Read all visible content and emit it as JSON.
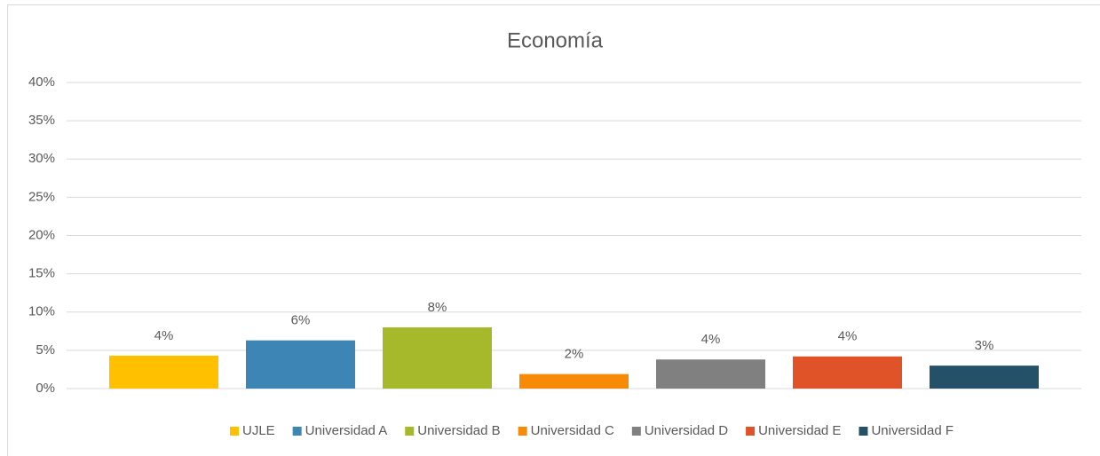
{
  "chart_data": {
    "type": "bar",
    "title": "Economía",
    "categories": [
      null
    ],
    "series": [
      {
        "name": "UJLE",
        "color": "#ffc000",
        "values": [
          4.3
        ],
        "value_labels": [
          "4%"
        ]
      },
      {
        "name": "Universidad A",
        "color": "#3d85b5",
        "values": [
          6.3
        ],
        "value_labels": [
          "6%"
        ]
      },
      {
        "name": "Universidad B",
        "color": "#a5b92a",
        "values": [
          8.0
        ],
        "value_labels": [
          "8%"
        ]
      },
      {
        "name": "Universidad C",
        "color": "#f78b07",
        "values": [
          1.9
        ],
        "value_labels": [
          "2%"
        ]
      },
      {
        "name": "Universidad D",
        "color": "#808080",
        "values": [
          3.8
        ],
        "value_labels": [
          "4%"
        ]
      },
      {
        "name": "Universidad E",
        "color": "#e05228",
        "values": [
          4.2
        ],
        "value_labels": [
          "4%"
        ]
      },
      {
        "name": "Universidad F",
        "color": "#245168",
        "values": [
          3.0
        ],
        "value_labels": [
          "3%"
        ]
      }
    ],
    "ylim": [
      0,
      40
    ],
    "yticks": [
      {
        "value": 0,
        "label": "0%"
      },
      {
        "value": 5,
        "label": "5%"
      },
      {
        "value": 10,
        "label": "10%"
      },
      {
        "value": 15,
        "label": "15%"
      },
      {
        "value": 20,
        "label": "20%"
      },
      {
        "value": 25,
        "label": "25%"
      },
      {
        "value": 30,
        "label": "30%"
      },
      {
        "value": 35,
        "label": "35%"
      },
      {
        "value": 40,
        "label": "40%"
      }
    ],
    "grid": true,
    "legend": "bottom"
  }
}
